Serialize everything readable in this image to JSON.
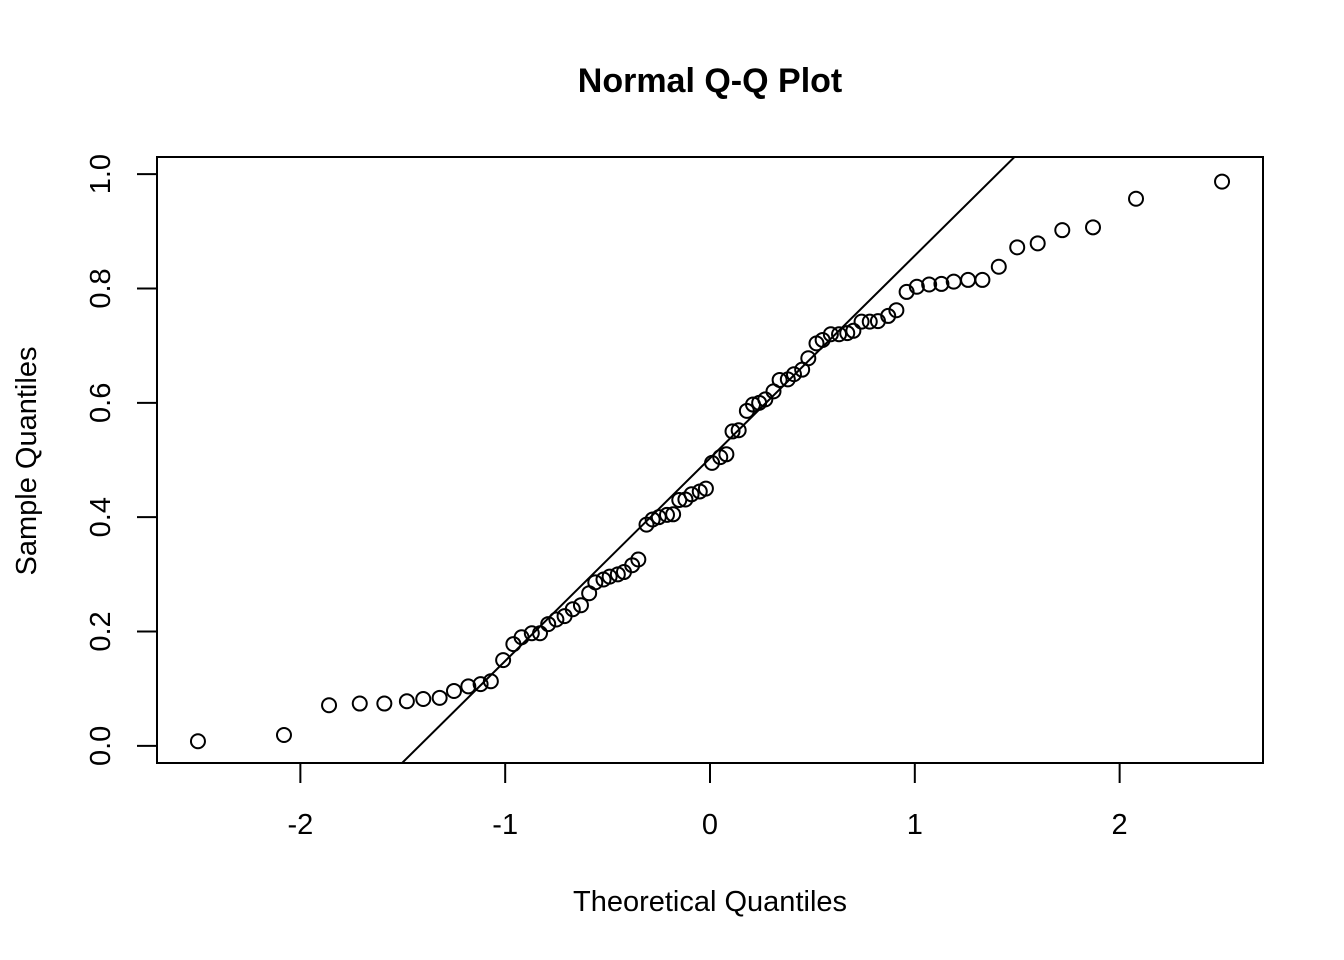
{
  "chart_data": {
    "type": "scatter",
    "title": "Normal Q-Q Plot",
    "xlabel": "Theoretical Quantiles",
    "ylabel": "Sample Quantiles",
    "xlim": [
      -2.7,
      2.7
    ],
    "ylim": [
      -0.03,
      1.03
    ],
    "xticks": [
      -2,
      -1,
      0,
      1,
      2
    ],
    "xtick_labels": [
      "-2",
      "-1",
      "0",
      "1",
      "2"
    ],
    "yticks": [
      0.0,
      0.2,
      0.4,
      0.6,
      0.8,
      1.0
    ],
    "ytick_labels": [
      "0.0",
      "0.2",
      "0.4",
      "0.6",
      "0.8",
      "1.0"
    ],
    "grid": false,
    "legend": "none",
    "reference_line": {
      "slope": 0.3545,
      "intercept": 0.503
    },
    "points": {
      "x": [
        -2.5,
        -2.08,
        -1.86,
        -1.71,
        -1.59,
        -1.48,
        -1.4,
        -1.32,
        -1.25,
        -1.18,
        -1.12,
        -1.07,
        -1.01,
        -0.96,
        -0.92,
        -0.87,
        -0.83,
        -0.79,
        -0.75,
        -0.71,
        -0.67,
        -0.63,
        -0.59,
        -0.56,
        -0.52,
        -0.49,
        -0.45,
        -0.42,
        -0.38,
        -0.35,
        -0.31,
        -0.28,
        -0.25,
        -0.21,
        -0.18,
        -0.15,
        -0.12,
        -0.09,
        -0.05,
        -0.02,
        0.01,
        0.05,
        0.08,
        0.11,
        0.14,
        0.18,
        0.21,
        0.24,
        0.27,
        0.31,
        0.34,
        0.38,
        0.41,
        0.45,
        0.48,
        0.52,
        0.55,
        0.59,
        0.63,
        0.67,
        0.7,
        0.74,
        0.78,
        0.82,
        0.87,
        0.91,
        0.96,
        1.01,
        1.07,
        1.13,
        1.19,
        1.26,
        1.33,
        1.41,
        1.5,
        1.6,
        1.72,
        1.87,
        2.08,
        2.5
      ],
      "y": [
        0.008,
        0.019,
        0.071,
        0.074,
        0.074,
        0.078,
        0.082,
        0.084,
        0.096,
        0.104,
        0.108,
        0.113,
        0.15,
        0.178,
        0.19,
        0.197,
        0.197,
        0.213,
        0.221,
        0.227,
        0.239,
        0.246,
        0.267,
        0.286,
        0.291,
        0.296,
        0.3,
        0.304,
        0.316,
        0.326,
        0.387,
        0.396,
        0.4,
        0.404,
        0.405,
        0.43,
        0.431,
        0.44,
        0.445,
        0.45,
        0.495,
        0.505,
        0.51,
        0.55,
        0.552,
        0.586,
        0.597,
        0.6,
        0.606,
        0.62,
        0.64,
        0.641,
        0.65,
        0.658,
        0.678,
        0.704,
        0.71,
        0.72,
        0.72,
        0.722,
        0.726,
        0.742,
        0.742,
        0.743,
        0.752,
        0.762,
        0.794,
        0.803,
        0.807,
        0.808,
        0.812,
        0.815,
        0.815,
        0.838,
        0.872,
        0.879,
        0.902,
        0.907,
        0.957,
        0.987
      ]
    }
  }
}
